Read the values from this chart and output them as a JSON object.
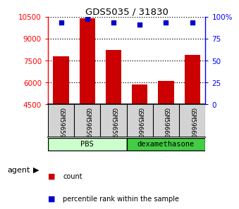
{
  "title": "GDS5035 / 31830",
  "samples": [
    "GSM596594",
    "GSM596595",
    "GSM596596",
    "GSM596600",
    "GSM596601",
    "GSM596602"
  ],
  "counts": [
    7800,
    10400,
    8200,
    5850,
    6100,
    7900
  ],
  "percentiles": [
    93,
    97,
    93,
    91,
    93,
    93
  ],
  "ylim_left": [
    4500,
    10500
  ],
  "ylim_right": [
    0,
    100
  ],
  "yticks_left": [
    4500,
    6000,
    7500,
    9000,
    10500
  ],
  "yticks_right": [
    0,
    25,
    50,
    75,
    100
  ],
  "ytick_labels_right": [
    "0",
    "25",
    "50",
    "75",
    "100%"
  ],
  "bar_color": "#cc0000",
  "dot_color": "#0000cc",
  "bar_bottom": 4500,
  "groups": [
    {
      "label": "PBS",
      "start": 0,
      "end": 3,
      "color": "#ccffcc"
    },
    {
      "label": "dexamethasone",
      "start": 3,
      "end": 6,
      "color": "#44cc44"
    }
  ],
  "agent_label": "agent",
  "legend_count_label": "count",
  "legend_pct_label": "percentile rank within the sample",
  "gridline_color": "#000000"
}
